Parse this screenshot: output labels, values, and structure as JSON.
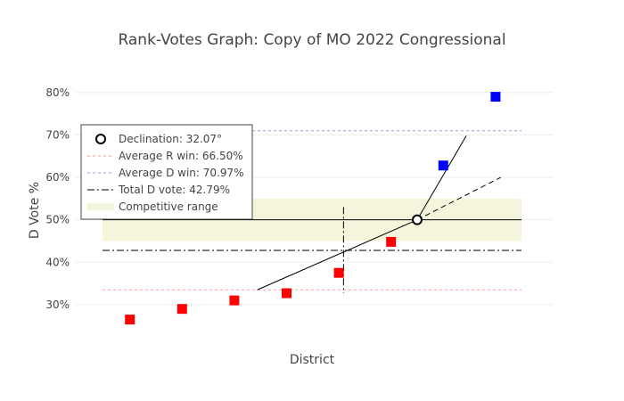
{
  "chart_data": {
    "type": "scatter",
    "title": "Rank-Votes Graph: Copy of MO 2022 Congressional",
    "xlabel": "District",
    "ylabel": "D Vote %",
    "ylim": [
      0.22,
      0.85
    ],
    "yticks": [
      0.3,
      0.4,
      0.5,
      0.6,
      0.7,
      0.8
    ],
    "ytick_labels": [
      "30%",
      "40%",
      "50%",
      "60%",
      "70%",
      "80%"
    ],
    "grid": true,
    "legend_position": "top-left",
    "colors": {
      "republican": "#ff0000",
      "democrat": "#0000ff",
      "avg_r": "#ff9999",
      "avg_d": "#9999dd",
      "competitive": "#f5f5dc"
    },
    "districts": [
      {
        "rank": 1,
        "value": 0.265,
        "party": "R"
      },
      {
        "rank": 2,
        "value": 0.29,
        "party": "R"
      },
      {
        "rank": 3,
        "value": 0.31,
        "party": "R"
      },
      {
        "rank": 4,
        "value": 0.327,
        "party": "R"
      },
      {
        "rank": 5,
        "value": 0.375,
        "party": "R"
      },
      {
        "rank": 6,
        "value": 0.448,
        "party": "R"
      },
      {
        "rank": 7,
        "value": 0.628,
        "party": "D"
      },
      {
        "rank": 8,
        "value": 0.79,
        "party": "D"
      }
    ],
    "declination_point": {
      "x": 6.5,
      "y": 0.5
    },
    "reference_lines": {
      "avg_r_win": 0.335,
      "avg_d_win": 0.7097,
      "total_d_vote": 0.4279,
      "total_d_vote_rank": 5.09,
      "midline": 0.5,
      "competitive_range": [
        0.45,
        0.55
      ]
    },
    "declination_lines": [
      {
        "from": [
          3.44,
          0.335
        ],
        "to": [
          6.5,
          0.5
        ],
        "style": "solid"
      },
      {
        "from": [
          6.5,
          0.5
        ],
        "to": [
          7.44,
          0.698
        ],
        "style": "solid"
      },
      {
        "from": [
          6.5,
          0.5
        ],
        "to": [
          8.1,
          0.6
        ],
        "style": "dashed"
      }
    ],
    "legend": [
      {
        "key": "declination",
        "label": "Declination: 32.07°"
      },
      {
        "key": "avg_r",
        "label": "Average R win: 66.50%"
      },
      {
        "key": "avg_d",
        "label": "Average D win: 70.97%"
      },
      {
        "key": "total_d",
        "label": "Total D vote: 42.79%"
      },
      {
        "key": "competitive",
        "label": "Competitive range"
      }
    ]
  }
}
